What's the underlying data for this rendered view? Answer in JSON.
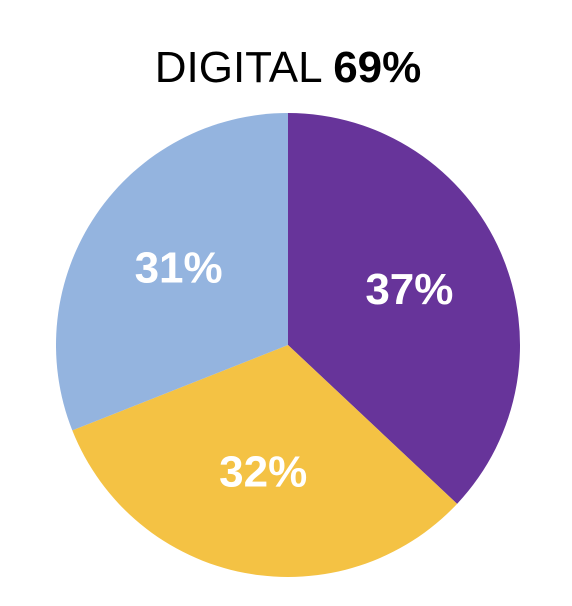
{
  "chart_data": {
    "type": "pie",
    "title": "DIGITAL",
    "title_highlight": "69%",
    "values": [
      37,
      32,
      31
    ],
    "value_labels": [
      "37%",
      "32%",
      "31%"
    ],
    "colors": [
      "#67349a",
      "#f4c244",
      "#94b4df"
    ]
  }
}
